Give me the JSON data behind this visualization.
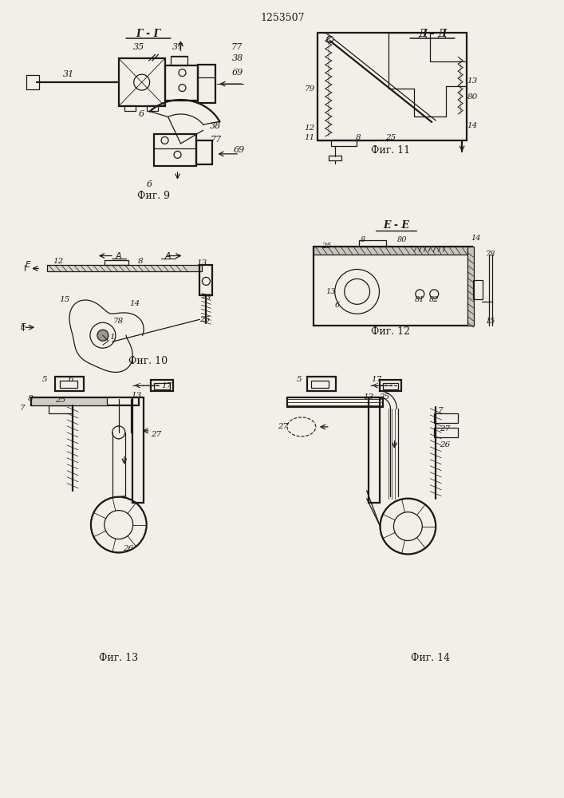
{
  "title": "1253507",
  "bg_color": "#f2efe8",
  "line_color": "#1a1a1a",
  "fig_labels": {
    "fig9": "Фиг. 9",
    "fig10": "Фиг. 10",
    "fig11": "Фиг. 11",
    "fig12": "Фиг. 12",
    "fig13": "Фиг. 13",
    "fig14": "Фиг. 14"
  },
  "GG_label": "Г - Г",
  "DD_label": "Д - Д",
  "EE_label": "Е - Е"
}
